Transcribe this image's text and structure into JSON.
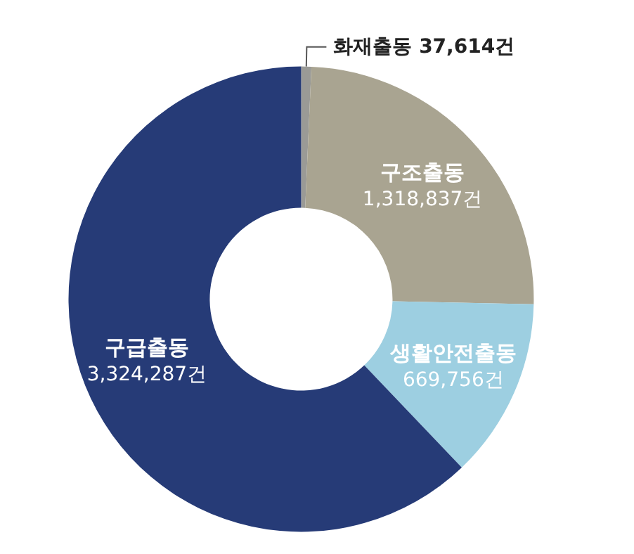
{
  "chart_data": {
    "type": "donut",
    "categories": [
      "화재출동",
      "구조출동",
      "생활안전출동",
      "구급출동"
    ],
    "values": [
      37614,
      1318837,
      669756,
      3324287
    ],
    "value_labels": [
      "37,614건",
      "1,318,837건",
      "669,756건",
      "3,324,287건"
    ],
    "colors": [
      "#9a9a96",
      "#a9a491",
      "#9dcfe1",
      "#263b77"
    ],
    "legend": false
  }
}
